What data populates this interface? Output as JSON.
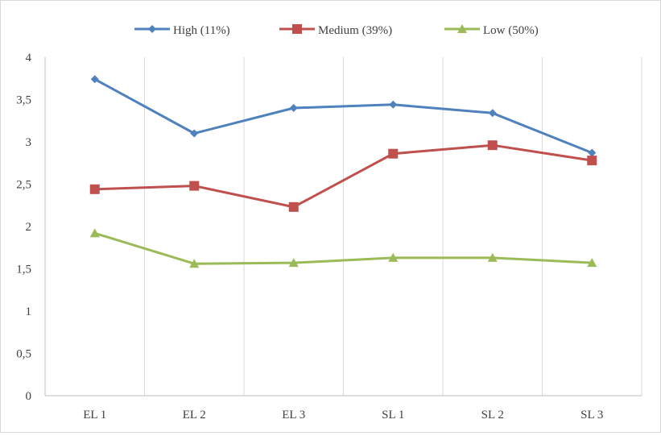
{
  "chart_data": {
    "type": "line",
    "categories": [
      "EL 1",
      "EL 2",
      "EL 3",
      "SL 1",
      "SL 2",
      "SL 3"
    ],
    "series": [
      {
        "name": "High (11%)",
        "color": "#4f81bd",
        "marker": "diamond",
        "values": [
          3.74,
          3.1,
          3.4,
          3.44,
          3.34,
          2.87
        ]
      },
      {
        "name": "Medium (39%)",
        "color": "#c0504d",
        "marker": "square",
        "values": [
          2.44,
          2.48,
          2.23,
          2.86,
          2.96,
          2.78
        ]
      },
      {
        "name": "Low (50%)",
        "color": "#9bbb59",
        "marker": "triangle",
        "values": [
          1.92,
          1.56,
          1.57,
          1.63,
          1.63,
          1.57
        ]
      }
    ],
    "yticks": [
      "0",
      "0,5",
      "1",
      "1,5",
      "2",
      "2,5",
      "3",
      "3,5",
      "4"
    ],
    "ylim": [
      0,
      4
    ],
    "grid": "vertical",
    "legend": "top",
    "title": "",
    "xlabel": "",
    "ylabel": ""
  }
}
